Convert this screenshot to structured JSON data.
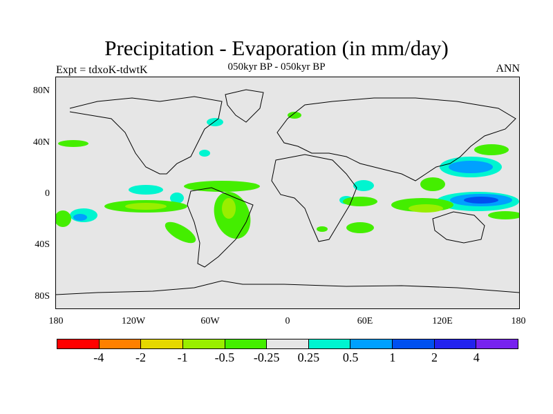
{
  "title": "Precipitation - Evaporation (in mm/day)",
  "subtitle": "050kyr BP - 050kyr BP",
  "left_label": "Expt = tdxoK-tdwtK",
  "right_label": "ANN",
  "lat_ticks": [
    {
      "label": "80N",
      "lat": 80
    },
    {
      "label": "40N",
      "lat": 40
    },
    {
      "label": "0",
      "lat": 0
    },
    {
      "label": "40S",
      "lat": -40
    },
    {
      "label": "80S",
      "lat": -80
    }
  ],
  "lon_ticks": [
    {
      "label": "180",
      "lon": -180
    },
    {
      "label": "120W",
      "lon": -120
    },
    {
      "label": "60W",
      "lon": -60
    },
    {
      "label": "0",
      "lon": 0
    },
    {
      "label": "60E",
      "lon": 60
    },
    {
      "label": "120E",
      "lon": 120
    },
    {
      "label": "180",
      "lon": 180
    }
  ],
  "colorbar": {
    "colors": [
      "#ff0000",
      "#ff8000",
      "#e6d800",
      "#99ee00",
      "#44ee00",
      "#e6e6e6",
      "#00f5d0",
      "#00a0ff",
      "#0050f0",
      "#2222ee",
      "#7722ee"
    ],
    "labels": [
      "-4",
      "-2",
      "-1",
      "-0.5",
      "-0.25",
      "0.25",
      "0.5",
      "1",
      "2",
      "4"
    ]
  }
}
